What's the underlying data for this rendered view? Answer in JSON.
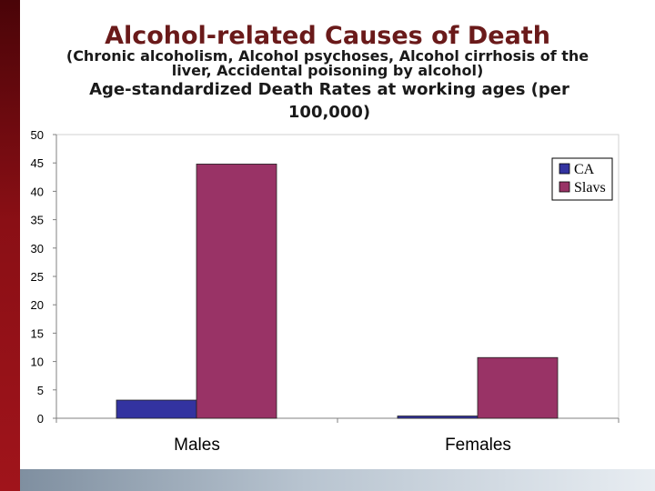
{
  "slide": {
    "title": "Alcohol-related Causes of Death",
    "subtitle_line1": "(Chronic alcoholism, Alcohol psychoses, Alcohol cirrhosis of the",
    "subtitle_line2": "liver, Accidental poisoning by alcohol)",
    "subtitle_main": "Age-standardized Death Rates at working ages (per 100,000)"
  },
  "colors": {
    "side_bar": "#8a0f15",
    "title": "#6a1a1a",
    "series_ca": "#3333a0",
    "series_slavs": "#993366",
    "plot_bg": "#ffffff"
  },
  "chart_data": {
    "type": "bar",
    "title": "",
    "xlabel": "",
    "ylabel": "",
    "categories": [
      "Males",
      "Females"
    ],
    "series": [
      {
        "name": "CA",
        "values": [
          3.2,
          0.4
        ]
      },
      {
        "name": "Slavs",
        "values": [
          44.8,
          10.7
        ]
      }
    ],
    "ylim": [
      0,
      50
    ],
    "yticks": [
      0,
      5,
      10,
      15,
      20,
      25,
      30,
      35,
      40,
      45,
      50
    ],
    "grid": false,
    "legend_position": "top-right"
  }
}
